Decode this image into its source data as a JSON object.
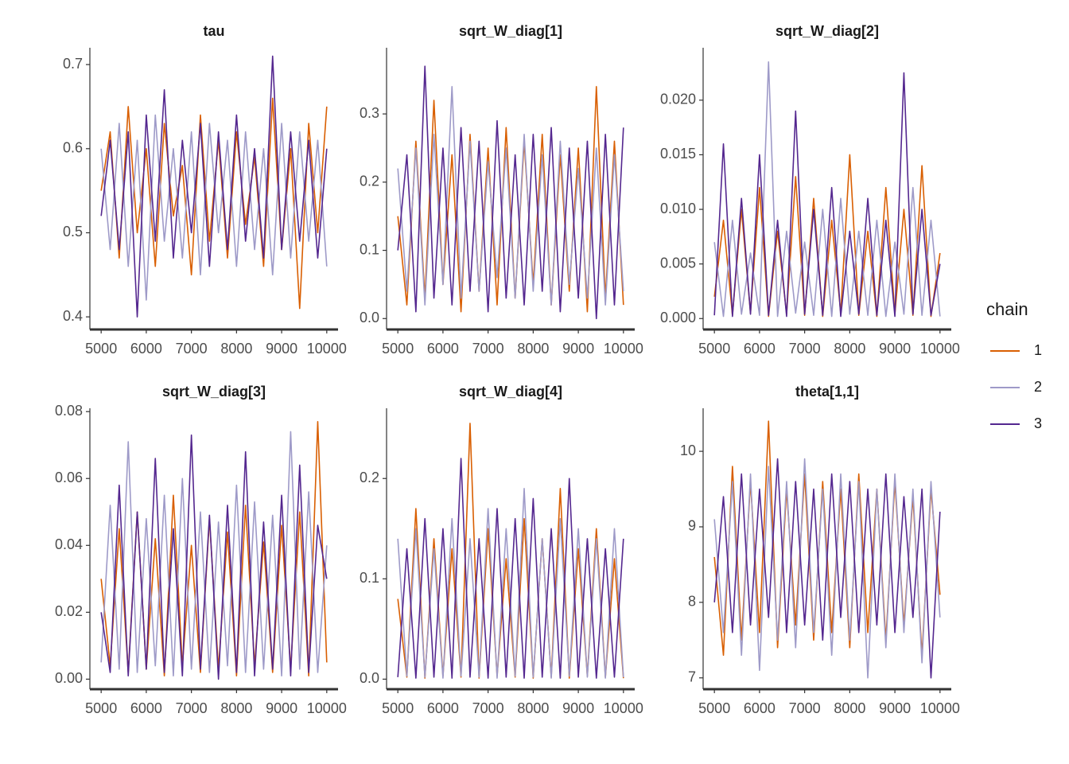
{
  "chart_data": [
    {
      "type": "line",
      "title": "tau",
      "x": [
        5000,
        5200,
        5400,
        5600,
        5800,
        6000,
        6200,
        6400,
        6600,
        6800,
        7000,
        7200,
        7400,
        7600,
        7800,
        8000,
        8200,
        8400,
        8600,
        8800,
        9000,
        9200,
        9400,
        9600,
        9800,
        10000
      ],
      "xlim": [
        4750,
        10250
      ],
      "xticks": [
        5000,
        6000,
        7000,
        8000,
        9000,
        10000
      ],
      "ylim": [
        0.385,
        0.72
      ],
      "yticks": [
        0.4,
        0.5,
        0.6,
        0.7
      ],
      "series": [
        {
          "name": "1",
          "color": "#d95f02",
          "values": [
            0.55,
            0.62,
            0.47,
            0.65,
            0.5,
            0.6,
            0.46,
            0.63,
            0.52,
            0.58,
            0.45,
            0.64,
            0.49,
            0.61,
            0.47,
            0.62,
            0.51,
            0.59,
            0.46,
            0.66,
            0.48,
            0.6,
            0.41,
            0.63,
            0.5,
            0.65
          ]
        },
        {
          "name": "2",
          "color": "#9e9ac8",
          "values": [
            0.6,
            0.48,
            0.63,
            0.46,
            0.61,
            0.42,
            0.64,
            0.49,
            0.6,
            0.47,
            0.62,
            0.45,
            0.63,
            0.5,
            0.61,
            0.46,
            0.62,
            0.48,
            0.6,
            0.45,
            0.63,
            0.47,
            0.62,
            0.49,
            0.61,
            0.46
          ]
        },
        {
          "name": "3",
          "color": "#54278f",
          "values": [
            0.52,
            0.61,
            0.48,
            0.62,
            0.4,
            0.64,
            0.49,
            0.67,
            0.47,
            0.61,
            0.5,
            0.63,
            0.46,
            0.62,
            0.48,
            0.64,
            0.49,
            0.6,
            0.47,
            0.71,
            0.48,
            0.62,
            0.49,
            0.61,
            0.47,
            0.6
          ]
        }
      ]
    },
    {
      "type": "line",
      "title": "sqrt_W_diag[1]",
      "x": [
        5000,
        5200,
        5400,
        5600,
        5800,
        6000,
        6200,
        6400,
        6600,
        6800,
        7000,
        7200,
        7400,
        7600,
        7800,
        8000,
        8200,
        8400,
        8600,
        8800,
        9000,
        9200,
        9400,
        9600,
        9800,
        10000
      ],
      "xlim": [
        4750,
        10250
      ],
      "xticks": [
        5000,
        6000,
        7000,
        8000,
        9000,
        10000
      ],
      "ylim": [
        -0.016,
        0.397
      ],
      "yticks": [
        {
          "value": 0,
          "label": "0.0"
        },
        0.1,
        0.2,
        0.3
      ],
      "series": [
        {
          "name": "1",
          "color": "#d95f02",
          "values": [
            0.15,
            0.02,
            0.26,
            0.03,
            0.32,
            0.05,
            0.24,
            0.01,
            0.27,
            0.04,
            0.25,
            0.02,
            0.28,
            0.03,
            0.26,
            0.05,
            0.27,
            0.02,
            0.24,
            0.04,
            0.25,
            0.01,
            0.34,
            0.03,
            0.26,
            0.02
          ]
        },
        {
          "name": "2",
          "color": "#9e9ac8",
          "values": [
            0.22,
            0.04,
            0.25,
            0.02,
            0.27,
            0.05,
            0.34,
            0.03,
            0.26,
            0.04,
            0.23,
            0.06,
            0.25,
            0.03,
            0.27,
            0.04,
            0.24,
            0.02,
            0.26,
            0.05,
            0.22,
            0.03,
            0.25,
            0.02,
            0.24,
            0.04
          ]
        },
        {
          "name": "3",
          "color": "#54278f",
          "values": [
            0.1,
            0.24,
            0.01,
            0.37,
            0.03,
            0.25,
            0.02,
            0.28,
            0.04,
            0.26,
            0.01,
            0.29,
            0.03,
            0.24,
            0.02,
            0.27,
            0.04,
            0.28,
            0.01,
            0.25,
            0.03,
            0.26,
            0.0,
            0.27,
            0.02,
            0.28
          ]
        }
      ]
    },
    {
      "type": "line",
      "title": "sqrt_W_diag[2]",
      "x": [
        5000,
        5200,
        5400,
        5600,
        5800,
        6000,
        6200,
        6400,
        6600,
        6800,
        7000,
        7200,
        7400,
        7600,
        7800,
        8000,
        8200,
        8400,
        8600,
        8800,
        9000,
        9200,
        9400,
        9600,
        9800,
        10000
      ],
      "xlim": [
        4750,
        10250
      ],
      "xticks": [
        5000,
        6000,
        7000,
        8000,
        9000,
        10000
      ],
      "ylim": [
        -0.001,
        0.0248
      ],
      "yticks": [
        {
          "value": 0,
          "label": "0.000"
        },
        0.005,
        {
          "value": 0.01,
          "label": "0.010"
        },
        0.015,
        {
          "value": 0.02,
          "label": "0.020"
        }
      ],
      "series": [
        {
          "name": "1",
          "color": "#d95f02",
          "values": [
            0.002,
            0.009,
            0.0003,
            0.01,
            0.0005,
            0.012,
            0.0002,
            0.008,
            0.0004,
            0.013,
            0.0003,
            0.011,
            0.0002,
            0.009,
            0.0005,
            0.015,
            0.0003,
            0.008,
            0.0002,
            0.012,
            0.0004,
            0.01,
            0.0003,
            0.014,
            0.0002,
            0.006
          ]
        },
        {
          "name": "2",
          "color": "#9e9ac8",
          "values": [
            0.007,
            0.0002,
            0.009,
            0.0004,
            0.006,
            0.0003,
            0.0235,
            0.0002,
            0.008,
            0.0005,
            0.007,
            0.0003,
            0.01,
            0.0002,
            0.011,
            0.0004,
            0.008,
            0.0003,
            0.009,
            0.0002,
            0.007,
            0.0004,
            0.012,
            0.0003,
            0.009,
            0.0002
          ]
        },
        {
          "name": "3",
          "color": "#54278f",
          "values": [
            0.0003,
            0.016,
            0.0002,
            0.011,
            0.0004,
            0.015,
            0.0003,
            0.009,
            0.0002,
            0.019,
            0.0004,
            0.01,
            0.0003,
            0.012,
            0.0002,
            0.008,
            0.0004,
            0.011,
            0.0003,
            0.009,
            0.0002,
            0.0225,
            0.0004,
            0.01,
            0.0003,
            0.005
          ]
        }
      ]
    },
    {
      "type": "line",
      "title": "sqrt_W_diag[3]",
      "x": [
        5000,
        5200,
        5400,
        5600,
        5800,
        6000,
        6200,
        6400,
        6600,
        6800,
        7000,
        7200,
        7400,
        7600,
        7800,
        8000,
        8200,
        8400,
        8600,
        8800,
        9000,
        9200,
        9400,
        9600,
        9800,
        10000
      ],
      "xlim": [
        4750,
        10250
      ],
      "xticks": [
        5000,
        6000,
        7000,
        8000,
        9000,
        10000
      ],
      "ylim": [
        -0.003,
        0.081
      ],
      "yticks": [
        {
          "value": 0,
          "label": "0.00"
        },
        0.02,
        0.04,
        0.06,
        0.08
      ],
      "series": [
        {
          "name": "1",
          "color": "#d95f02",
          "values": [
            0.03,
            0.004,
            0.045,
            0.002,
            0.05,
            0.003,
            0.042,
            0.001,
            0.055,
            0.004,
            0.04,
            0.002,
            0.048,
            0.003,
            0.044,
            0.001,
            0.052,
            0.004,
            0.041,
            0.002,
            0.046,
            0.003,
            0.05,
            0.001,
            0.077,
            0.005
          ]
        },
        {
          "name": "2",
          "color": "#9e9ac8",
          "values": [
            0.005,
            0.052,
            0.003,
            0.071,
            0.002,
            0.048,
            0.004,
            0.055,
            0.001,
            0.06,
            0.003,
            0.05,
            0.002,
            0.047,
            0.004,
            0.058,
            0.002,
            0.053,
            0.003,
            0.049,
            0.001,
            0.074,
            0.003,
            0.056,
            0.002,
            0.04
          ]
        },
        {
          "name": "3",
          "color": "#54278f",
          "values": [
            0.02,
            0.002,
            0.058,
            0.001,
            0.05,
            0.003,
            0.066,
            0.002,
            0.045,
            0.001,
            0.073,
            0.003,
            0.049,
            0.0,
            0.052,
            0.002,
            0.068,
            0.001,
            0.047,
            0.003,
            0.055,
            0.001,
            0.064,
            0.002,
            0.046,
            0.03
          ]
        }
      ]
    },
    {
      "type": "line",
      "title": "sqrt_W_diag[4]",
      "x": [
        5000,
        5200,
        5400,
        5600,
        5800,
        6000,
        6200,
        6400,
        6600,
        6800,
        7000,
        7200,
        7400,
        7600,
        7800,
        8000,
        8200,
        8400,
        8600,
        8800,
        9000,
        9200,
        9400,
        9600,
        9800,
        10000
      ],
      "xlim": [
        4750,
        10250
      ],
      "xticks": [
        5000,
        6000,
        7000,
        8000,
        9000,
        10000
      ],
      "ylim": [
        -0.01,
        0.27
      ],
      "yticks": [
        {
          "value": 0,
          "label": "0.0"
        },
        0.1,
        0.2
      ],
      "series": [
        {
          "name": "1",
          "color": "#d95f02",
          "values": [
            0.08,
            0.002,
            0.17,
            0.001,
            0.14,
            0.003,
            0.13,
            0.002,
            0.255,
            0.001,
            0.15,
            0.003,
            0.12,
            0.002,
            0.16,
            0.001,
            0.14,
            0.002,
            0.19,
            0.001,
            0.13,
            0.003,
            0.15,
            0.002,
            0.12,
            0.001
          ]
        },
        {
          "name": "2",
          "color": "#9e9ac8",
          "values": [
            0.14,
            0.003,
            0.15,
            0.002,
            0.13,
            0.001,
            0.16,
            0.003,
            0.14,
            0.002,
            0.17,
            0.001,
            0.15,
            0.003,
            0.19,
            0.002,
            0.14,
            0.001,
            0.16,
            0.003,
            0.15,
            0.002,
            0.14,
            0.001,
            0.15,
            0.002
          ]
        },
        {
          "name": "3",
          "color": "#54278f",
          "values": [
            0.002,
            0.13,
            0.001,
            0.16,
            0.002,
            0.15,
            0.001,
            0.22,
            0.002,
            0.14,
            0.001,
            0.17,
            0.002,
            0.16,
            0.001,
            0.18,
            0.002,
            0.15,
            0.001,
            0.2,
            0.002,
            0.14,
            0.001,
            0.13,
            0.002,
            0.14
          ]
        }
      ]
    },
    {
      "type": "line",
      "title": "theta[1,1]",
      "x": [
        5000,
        5200,
        5400,
        5600,
        5800,
        6000,
        6200,
        6400,
        6600,
        6800,
        7000,
        7200,
        7400,
        7600,
        7800,
        8000,
        8200,
        8400,
        8600,
        8800,
        9000,
        9200,
        9400,
        9600,
        9800,
        10000
      ],
      "xlim": [
        4750,
        10250
      ],
      "xticks": [
        5000,
        6000,
        7000,
        8000,
        9000,
        10000
      ],
      "ylim": [
        6.85,
        10.57
      ],
      "yticks": [
        7,
        8,
        9,
        10
      ],
      "series": [
        {
          "name": "1",
          "color": "#d95f02",
          "values": [
            8.6,
            7.3,
            9.8,
            7.5,
            9.6,
            7.6,
            10.4,
            7.4,
            9.5,
            7.7,
            9.7,
            7.5,
            9.6,
            7.6,
            9.5,
            7.4,
            9.7,
            7.6,
            9.5,
            7.5,
            9.6,
            7.7,
            9.4,
            7.3,
            9.5,
            8.1
          ]
        },
        {
          "name": "2",
          "color": "#9e9ac8",
          "values": [
            9.1,
            7.6,
            9.6,
            7.3,
            9.7,
            7.1,
            9.8,
            7.5,
            9.6,
            7.4,
            9.9,
            7.6,
            9.5,
            7.3,
            9.7,
            7.5,
            9.6,
            7.0,
            9.5,
            7.4,
            9.7,
            7.6,
            9.5,
            7.2,
            9.6,
            7.8
          ]
        },
        {
          "name": "3",
          "color": "#54278f",
          "values": [
            8.0,
            9.4,
            7.6,
            9.7,
            7.7,
            9.5,
            7.8,
            9.9,
            7.6,
            9.6,
            7.7,
            9.5,
            7.5,
            9.7,
            7.8,
            9.6,
            7.6,
            9.5,
            7.7,
            9.7,
            7.6,
            9.4,
            7.8,
            9.5,
            7.0,
            9.2
          ]
        }
      ]
    }
  ],
  "legend": {
    "title": "chain",
    "position": "right"
  }
}
